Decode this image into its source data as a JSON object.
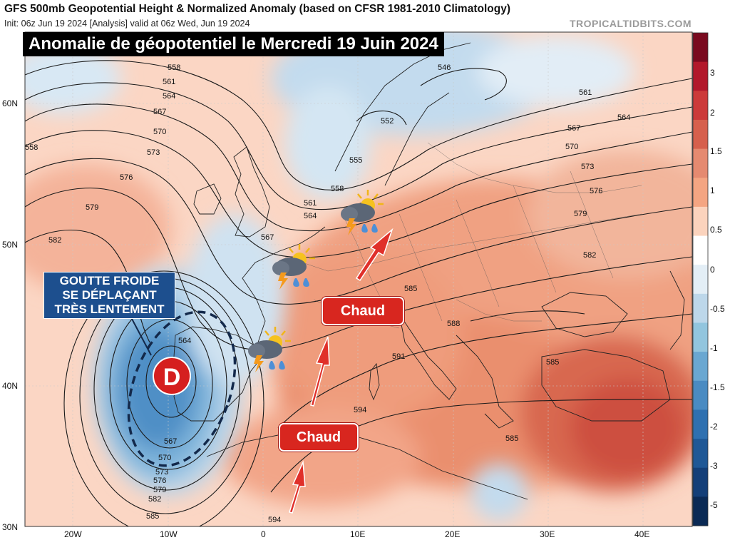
{
  "header": {
    "title": "GFS 500mb Geopotential Height & Normalized Anomaly (based on CFSR 1981-2010 Climatology)",
    "init": "Init: 06z Jun 19 2024   [Analysis]   valid at 06z Wed, Jun 19 2024",
    "site": "TROPICALTIDBITS.COM"
  },
  "banner": "Anomalie de géopotentiel le Mercredi 19 Juin 2024",
  "callout": {
    "line1": "GOUTTE FROIDE",
    "line2": "SE DÉPLAÇANT",
    "line3": "TRÈS LENTEMENT"
  },
  "low_marker": "D",
  "labels": {
    "chaud_1": "Chaud",
    "chaud_2": "Chaud"
  },
  "lat_labels": [
    "60N",
    "50N",
    "40N",
    "30N"
  ],
  "lon_labels": [
    "20W",
    "10W",
    "0",
    "10E",
    "20E",
    "30E",
    "40E"
  ],
  "colorbar": {
    "labels": [
      "3",
      "2",
      "1.5",
      "1",
      "0.5",
      "0",
      "-0.5",
      "-1",
      "-1.5",
      "-2",
      "-3",
      "-5"
    ],
    "colors": [
      "#7a0a1f",
      "#b2182b",
      "#cc3a3a",
      "#d6604d",
      "#e58a70",
      "#f4a582",
      "#fbd3bd",
      "#ffffff",
      "#e3eef6",
      "#bdd7ea",
      "#92c5de",
      "#6aa7d1",
      "#4a8bc2",
      "#2f70b0",
      "#1f5896",
      "#143f78",
      "#0b2a55"
    ]
  },
  "contours": [
    "558",
    "561",
    "564",
    "567",
    "570",
    "573",
    "576",
    "579",
    "582",
    "585",
    "588",
    "591",
    "594",
    "546",
    "552",
    "555"
  ],
  "weather_icons": [
    "thunderstorm-icon",
    "thunderstorm-icon",
    "thunderstorm-icon"
  ],
  "anomaly_colors": {
    "warm_strong": "#d6604d",
    "warm_mid": "#f4a582",
    "warm_light": "#fbd3bd",
    "cold_light": "#c6dbef",
    "cold_mid": "#6baed6",
    "cold_strong": "#2c6aad"
  }
}
